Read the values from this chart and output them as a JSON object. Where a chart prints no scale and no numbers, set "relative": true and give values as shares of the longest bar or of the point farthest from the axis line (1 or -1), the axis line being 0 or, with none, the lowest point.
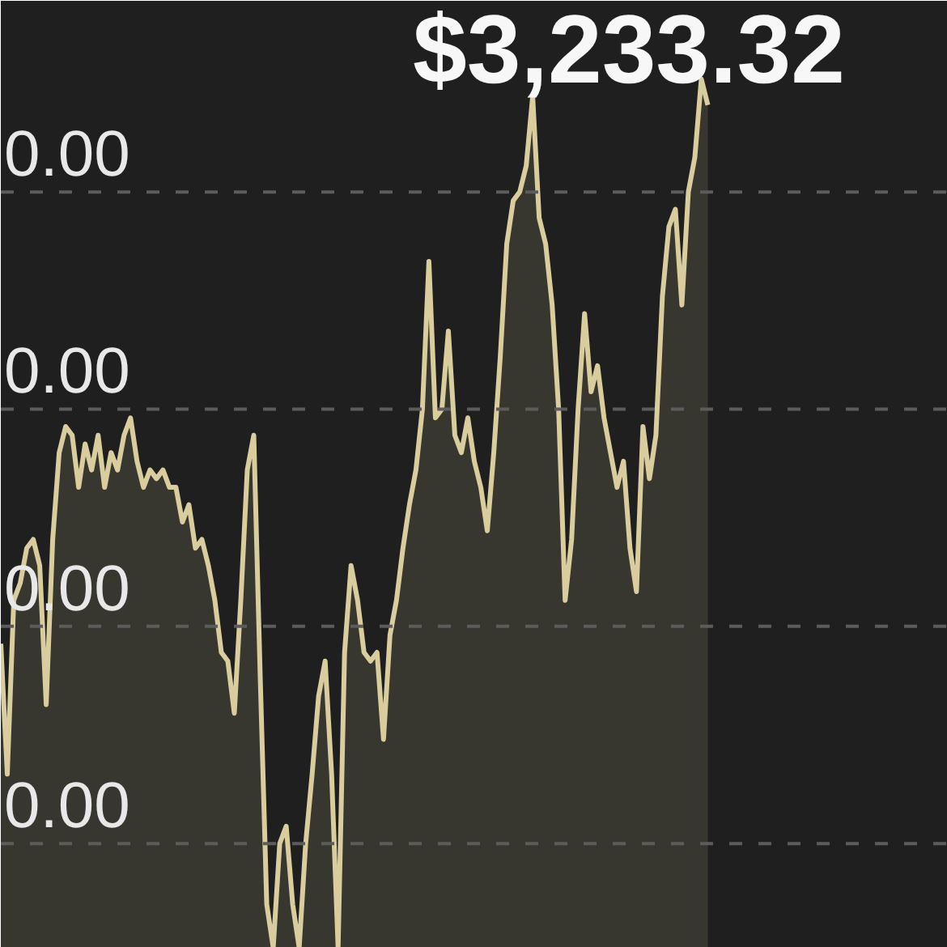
{
  "chart_data": {
    "type": "area",
    "title": "$3,233.32",
    "relative": true,
    "color": "#d9cd9e",
    "categories": [
      null,
      null,
      null,
      null,
      null,
      null,
      null,
      null,
      null,
      null,
      null,
      null,
      null,
      null,
      null,
      null,
      null,
      null,
      null,
      null,
      null,
      null,
      null,
      null,
      null,
      null,
      null,
      null,
      null,
      null,
      null,
      null,
      null,
      null,
      null,
      null,
      null,
      null,
      null,
      null,
      null,
      null,
      null,
      null,
      null,
      null,
      null,
      null,
      null,
      null,
      null,
      null,
      null,
      null,
      null,
      null,
      null,
      null,
      null,
      null,
      null,
      null,
      null,
      null,
      null,
      null,
      null,
      null,
      null,
      null,
      null,
      null,
      null,
      null,
      null,
      null,
      null,
      null,
      null,
      null,
      null,
      null,
      null,
      null,
      null,
      null,
      null,
      null,
      null,
      null,
      null,
      null,
      null,
      null,
      null,
      null,
      null,
      null,
      null,
      null,
      null,
      null,
      null,
      null,
      null,
      null,
      null,
      null,
      null,
      null,
      null,
      null,
      null,
      null,
      null,
      null,
      null,
      null,
      null,
      null,
      null,
      null,
      null,
      null,
      null,
      null,
      null,
      null,
      null,
      null,
      null,
      null,
      null,
      null,
      null,
      null,
      null,
      null,
      null,
      null,
      null,
      null,
      null,
      null,
      null,
      null,
      null
    ],
    "values": [
      0.35,
      0.2,
      0.4,
      0.42,
      0.46,
      0.47,
      0.44,
      0.28,
      0.47,
      0.57,
      0.6,
      0.59,
      0.53,
      0.58,
      0.55,
      0.59,
      0.53,
      0.57,
      0.55,
      0.59,
      0.61,
      0.56,
      0.53,
      0.55,
      0.54,
      0.55,
      0.53,
      0.53,
      0.49,
      0.51,
      0.46,
      0.47,
      0.44,
      0.4,
      0.34,
      0.33,
      0.27,
      0.4,
      0.55,
      0.59,
      0.31,
      0.05,
      0,
      0.12,
      0.14,
      0.05,
      0,
      0.12,
      0.2,
      0.29,
      0.33,
      0.2,
      0,
      0.34,
      0.44,
      0.4,
      0.34,
      0.33,
      0.34,
      0.24,
      0.36,
      0.4,
      0.46,
      0.51,
      0.55,
      0.62,
      0.79,
      0.61,
      0.62,
      0.71,
      0.59,
      0.57,
      0.61,
      0.56,
      0.53,
      0.48,
      0.57,
      0.68,
      0.81,
      0.86,
      0.87,
      0.9,
      0.98,
      0.84,
      0.81,
      0.74,
      0.62,
      0.4,
      0.47,
      0.62,
      0.73,
      0.64,
      0.67,
      0.61,
      0.57,
      0.53,
      0.56,
      0.46,
      0.41,
      0.6,
      0.54,
      0.59,
      0.75,
      0.83,
      0.85,
      0.74,
      0.87,
      0.91,
      1.0,
      0.97,
      null,
      null,
      null,
      null,
      null,
      null,
      null,
      null,
      null,
      null,
      null,
      null,
      null,
      null,
      null,
      null,
      null,
      null,
      null,
      null,
      null,
      null,
      null,
      null,
      null,
      null,
      null,
      null,
      null,
      null,
      null,
      null,
      null,
      null,
      null,
      null,
      null
    ],
    "ref_lines": [
      {
        "axis": "y",
        "value": 0.87,
        "line_style": "dashed",
        "color": "#5c5c5c"
      },
      {
        "axis": "y",
        "value": 0.62,
        "line_style": "dashed",
        "color": "#5c5c5c"
      },
      {
        "axis": "y",
        "value": 0.37,
        "line_style": "dashed",
        "color": "#5c5c5c"
      },
      {
        "axis": "y",
        "value": 0.12,
        "line_style": "dashed",
        "color": "#5c5c5c"
      }
    ],
    "annotations": [
      "0.00",
      "0.00",
      "0.00",
      "0.00"
    ]
  }
}
